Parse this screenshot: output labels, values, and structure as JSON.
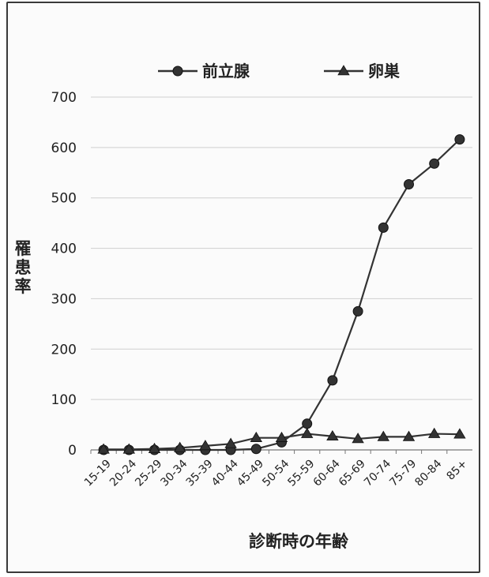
{
  "chart_data": {
    "type": "line",
    "xlabel": "診断時の年齢",
    "ylabel": "罹患率",
    "ylim": [
      0,
      700
    ],
    "yticks": [
      0,
      100,
      200,
      300,
      400,
      500,
      600,
      700
    ],
    "grid": "horizontal",
    "legend_position": "top",
    "categories": [
      "15-19",
      "20-24",
      "25-29",
      "30-34",
      "35-39",
      "40-44",
      "45-49",
      "50-54",
      "55-59",
      "60-64",
      "65-69",
      "70-74",
      "75-79",
      "80-84",
      "85+"
    ],
    "series": [
      {
        "name": "前立腺",
        "marker": "circle",
        "color": "#333333",
        "values": [
          0,
          0,
          0,
          0,
          0,
          0,
          2,
          15,
          52,
          138,
          275,
          441,
          527,
          568,
          616
        ]
      },
      {
        "name": "卵巣",
        "marker": "triangle",
        "color": "#333333",
        "values": [
          1,
          1,
          2,
          4,
          8,
          12,
          24,
          24,
          32,
          27,
          22,
          26,
          26,
          32,
          31
        ]
      }
    ]
  }
}
